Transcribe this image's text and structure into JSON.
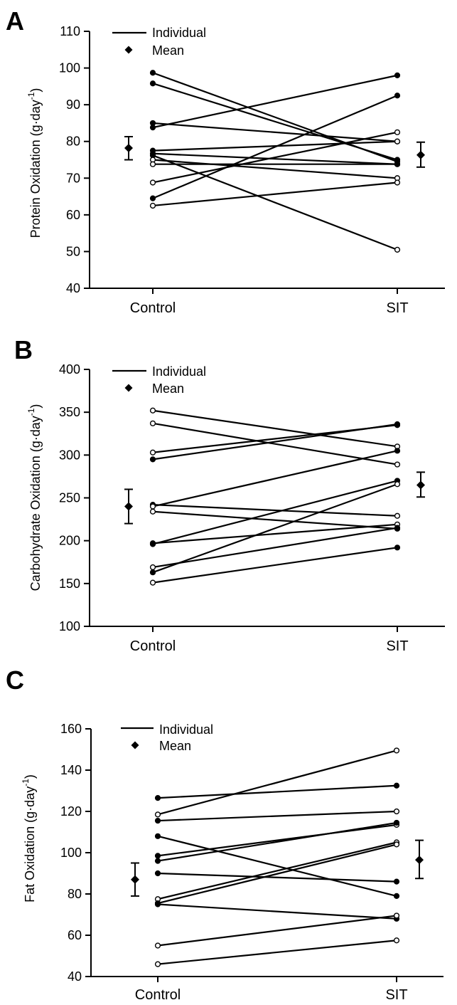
{
  "chart_data": [
    {
      "type": "line",
      "panel": "A",
      "ylabel": "Protein Oxidation (g·day-1)",
      "ylabel_main": "Protein Oxidation (g·day",
      "ylabel_sup": "-1",
      "ylabel_end": ")",
      "ylim": [
        40,
        110
      ],
      "yticks": [
        "40",
        "50",
        "60",
        "70",
        "80",
        "90",
        "100",
        "110"
      ],
      "categories": [
        "Control",
        "SIT"
      ],
      "legend": {
        "individual": "Individual",
        "mean": "Mean"
      },
      "legend_placement": "top-left",
      "grid": false,
      "series": [
        {
          "values": [
            98.7,
            74.5
          ],
          "filled": [
            true,
            true
          ]
        },
        {
          "values": [
            95.8,
            75.0
          ],
          "filled": [
            true,
            true
          ]
        },
        {
          "values": [
            85.0,
            80.0
          ],
          "filled": [
            true,
            true
          ]
        },
        {
          "values": [
            83.8,
            98.0
          ],
          "filled": [
            true,
            true
          ]
        },
        {
          "values": [
            77.5,
            80.0
          ],
          "filled": [
            true,
            false
          ]
        },
        {
          "values": [
            76.7,
            73.8
          ],
          "filled": [
            true,
            true
          ]
        },
        {
          "values": [
            76.2,
            50.5
          ],
          "filled": [
            true,
            false
          ]
        },
        {
          "values": [
            75.0,
            70.0
          ],
          "filled": [
            false,
            false
          ]
        },
        {
          "values": [
            73.8,
            73.8
          ],
          "filled": [
            false,
            true
          ]
        },
        {
          "values": [
            68.8,
            82.5
          ],
          "filled": [
            false,
            false
          ]
        },
        {
          "values": [
            64.5,
            92.5
          ],
          "filled": [
            true,
            true
          ]
        },
        {
          "values": [
            62.5,
            68.8
          ],
          "filled": [
            false,
            false
          ]
        }
      ],
      "mean": [
        {
          "value": 78.2,
          "err_low": 75.0,
          "err_high": 81.3
        },
        {
          "value": 76.3,
          "err_low": 73.0,
          "err_high": 79.8
        }
      ]
    },
    {
      "type": "line",
      "panel": "B",
      "ylabel": "Carbohydrate Oxidation (g·day-1)",
      "ylabel_main": "Carbohydrate Oxidation (g·day",
      "ylabel_sup": "-1",
      "ylabel_end": ")",
      "ylim": [
        100,
        400
      ],
      "yticks": [
        "100",
        "150",
        "200",
        "250",
        "300",
        "350",
        "400"
      ],
      "categories": [
        "Control",
        "SIT"
      ],
      "legend": {
        "individual": "Individual",
        "mean": "Mean"
      },
      "legend_placement": "top-left",
      "grid": false,
      "series": [
        {
          "values": [
            352,
            310
          ],
          "filled": [
            false,
            false
          ]
        },
        {
          "values": [
            337,
            289
          ],
          "filled": [
            false,
            false
          ]
        },
        {
          "values": [
            303,
            335
          ],
          "filled": [
            false,
            true
          ]
        },
        {
          "values": [
            295,
            336
          ],
          "filled": [
            true,
            true
          ]
        },
        {
          "values": [
            242,
            229
          ],
          "filled": [
            true,
            false
          ]
        },
        {
          "values": [
            240,
            305
          ],
          "filled": [
            false,
            true
          ]
        },
        {
          "values": [
            234,
            214
          ],
          "filled": [
            false,
            false
          ]
        },
        {
          "values": [
            197,
            219
          ],
          "filled": [
            true,
            false
          ]
        },
        {
          "values": [
            196,
            270
          ],
          "filled": [
            true,
            true
          ]
        },
        {
          "values": [
            169,
            215
          ],
          "filled": [
            false,
            true
          ]
        },
        {
          "values": [
            163,
            266
          ],
          "filled": [
            true,
            false
          ]
        },
        {
          "values": [
            151,
            192
          ],
          "filled": [
            false,
            true
          ]
        }
      ],
      "mean": [
        {
          "value": 240,
          "err_low": 220,
          "err_high": 260
        },
        {
          "value": 265,
          "err_low": 251,
          "err_high": 280
        }
      ]
    },
    {
      "type": "line",
      "panel": "C",
      "ylabel": "Fat Oxidation (g·day-1)",
      "ylabel_main": "Fat Oxidation (g·day",
      "ylabel_sup": "-1",
      "ylabel_end": ")",
      "ylim": [
        40,
        160
      ],
      "yticks": [
        "40",
        "60",
        "80",
        "100",
        "120",
        "140",
        "160"
      ],
      "categories": [
        "Control",
        "SIT"
      ],
      "legend": {
        "individual": "Individual",
        "mean": "Mean"
      },
      "legend_placement": "top-left",
      "grid": false,
      "series": [
        {
          "values": [
            126.5,
            132.5
          ],
          "filled": [
            true,
            true
          ]
        },
        {
          "values": [
            118.5,
            149.5
          ],
          "filled": [
            false,
            false
          ]
        },
        {
          "values": [
            115.5,
            120.0
          ],
          "filled": [
            true,
            false
          ]
        },
        {
          "values": [
            108.0,
            79.0
          ],
          "filled": [
            true,
            true
          ]
        },
        {
          "values": [
            98.5,
            113.5
          ],
          "filled": [
            true,
            false
          ]
        },
        {
          "values": [
            96.0,
            114.5
          ],
          "filled": [
            true,
            true
          ]
        },
        {
          "values": [
            90.0,
            86.0
          ],
          "filled": [
            true,
            true
          ]
        },
        {
          "values": [
            77.5,
            105.0
          ],
          "filled": [
            false,
            false
          ]
        },
        {
          "values": [
            75.5,
            104.0
          ],
          "filled": [
            true,
            false
          ]
        },
        {
          "values": [
            75.0,
            68.0
          ],
          "filled": [
            true,
            true
          ]
        },
        {
          "values": [
            55.0,
            69.5
          ],
          "filled": [
            false,
            false
          ]
        },
        {
          "values": [
            46.0,
            57.5
          ],
          "filled": [
            false,
            false
          ]
        }
      ],
      "mean": [
        {
          "value": 87.0,
          "err_low": 79.0,
          "err_high": 95.0
        },
        {
          "value": 96.5,
          "err_low": 87.5,
          "err_high": 106.0
        }
      ]
    }
  ]
}
